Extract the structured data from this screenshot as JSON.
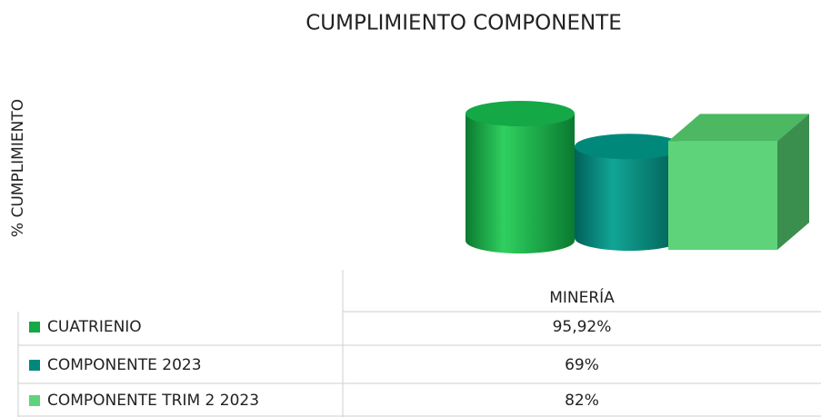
{
  "chart_data": {
    "type": "bar3d",
    "title": "CUMPLIMIENTO COMPONENTE",
    "y_label": "% CUMPLIMIENTO",
    "categories": [
      "MINERÍA"
    ],
    "series": [
      {
        "name": "CUATRIENIO",
        "color": "#14a846",
        "shape": "cylinder",
        "values": [
          95.92
        ],
        "value_labels": [
          "95,92%"
        ]
      },
      {
        "name": "COMPONENTE 2023",
        "color": "#00897b",
        "shape": "cylinder",
        "values": [
          69
        ],
        "value_labels": [
          "69%"
        ]
      },
      {
        "name": "COMPONENTE TRIM 2 2023",
        "color": "#5fd37a",
        "shape": "box",
        "values": [
          82
        ],
        "value_labels": [
          "82%"
        ]
      }
    ]
  }
}
